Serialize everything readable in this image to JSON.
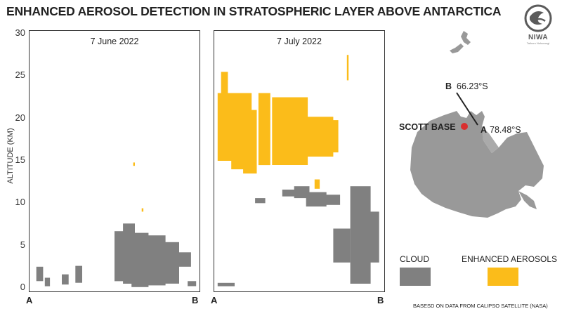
{
  "header": {
    "title": "ENHANCED AEROSOL DETECTION IN STRATOSPHERIC LAYER ABOVE ANTARCTICA"
  },
  "logo": {
    "name": "niwa-logo-icon",
    "text": "NIWA",
    "tagline": "Taihoro Nukurangi"
  },
  "colors": {
    "cloud": "#808080",
    "aerosol": "#fbbc1a",
    "land": "#999999"
  },
  "chart_data": [
    {
      "type": "area",
      "title": "7 June 2022",
      "ylabel": "ALTITUDE (KM)",
      "ylim": [
        0,
        30
      ],
      "yticks": [
        0,
        5,
        10,
        15,
        20,
        25,
        30
      ],
      "xlabels": {
        "start": "A",
        "end": "B"
      },
      "series": [
        {
          "name": "CLOUD",
          "regions": [
            [
              0.04,
              0.08,
              0.8,
              2.5
            ],
            [
              0.09,
              0.12,
              0.2,
              1.2
            ],
            [
              0.19,
              0.23,
              0.4,
              1.6
            ],
            [
              0.27,
              0.31,
              0.6,
              2.6
            ],
            [
              0.5,
              0.56,
              0.8,
              6.7
            ],
            [
              0.55,
              0.62,
              0.5,
              7.6
            ],
            [
              0.6,
              0.7,
              0.1,
              6.5
            ],
            [
              0.68,
              0.8,
              0.3,
              6.2
            ],
            [
              0.78,
              0.88,
              0.5,
              5.4
            ],
            [
              0.87,
              0.95,
              2.5,
              4.2
            ],
            [
              0.93,
              0.98,
              0.2,
              0.8
            ]
          ]
        },
        {
          "name": "ENHANCED AEROSOLS",
          "regions": [
            [
              0.61,
              0.62,
              14.4,
              14.8
            ],
            [
              0.66,
              0.67,
              9.0,
              9.4
            ]
          ]
        }
      ]
    },
    {
      "type": "area",
      "title": "7 July 2022",
      "ylim": [
        0,
        30
      ],
      "xlabels": {
        "start": "A",
        "end": "B"
      },
      "series": [
        {
          "name": "CLOUD",
          "regions": [
            [
              0.02,
              0.12,
              0.2,
              0.6
            ],
            [
              0.24,
              0.3,
              10.0,
              10.6
            ],
            [
              0.4,
              0.5,
              10.8,
              11.6
            ],
            [
              0.47,
              0.56,
              10.6,
              12.0
            ],
            [
              0.54,
              0.66,
              9.6,
              11.3
            ],
            [
              0.64,
              0.74,
              9.8,
              11.0
            ],
            [
              0.8,
              0.92,
              0.5,
              12.0
            ],
            [
              0.85,
              0.97,
              3.0,
              9.0
            ],
            [
              0.7,
              0.8,
              3.0,
              7.0
            ]
          ]
        },
        {
          "name": "ENHANCED AEROSOLS",
          "regions": [
            [
              0.04,
              0.08,
              19.0,
              25.5
            ],
            [
              0.02,
              0.12,
              15.0,
              23.0
            ],
            [
              0.1,
              0.22,
              14.0,
              23.0
            ],
            [
              0.17,
              0.25,
              13.5,
              21.0
            ],
            [
              0.26,
              0.33,
              14.5,
              23.0
            ],
            [
              0.34,
              0.55,
              14.5,
              22.5
            ],
            [
              0.5,
              0.7,
              15.5,
              20.2
            ],
            [
              0.56,
              0.73,
              16.0,
              19.8
            ],
            [
              0.59,
              0.62,
              11.7,
              12.8
            ],
            [
              0.78,
              0.79,
              24.5,
              27.5
            ]
          ]
        }
      ]
    }
  ],
  "map": {
    "label_b": "B",
    "lat_b": "66.23°S",
    "label_a": "A",
    "lat_a": "78.48°S",
    "base": "SCOTT BASE"
  },
  "legend": {
    "cloud_label": "CLOUD",
    "aerosol_label": "ENHANCED AEROSOLS"
  },
  "footer": {
    "source": "BASESD ON DATA FROM CALIPSO SATELLITE (NASA)"
  }
}
